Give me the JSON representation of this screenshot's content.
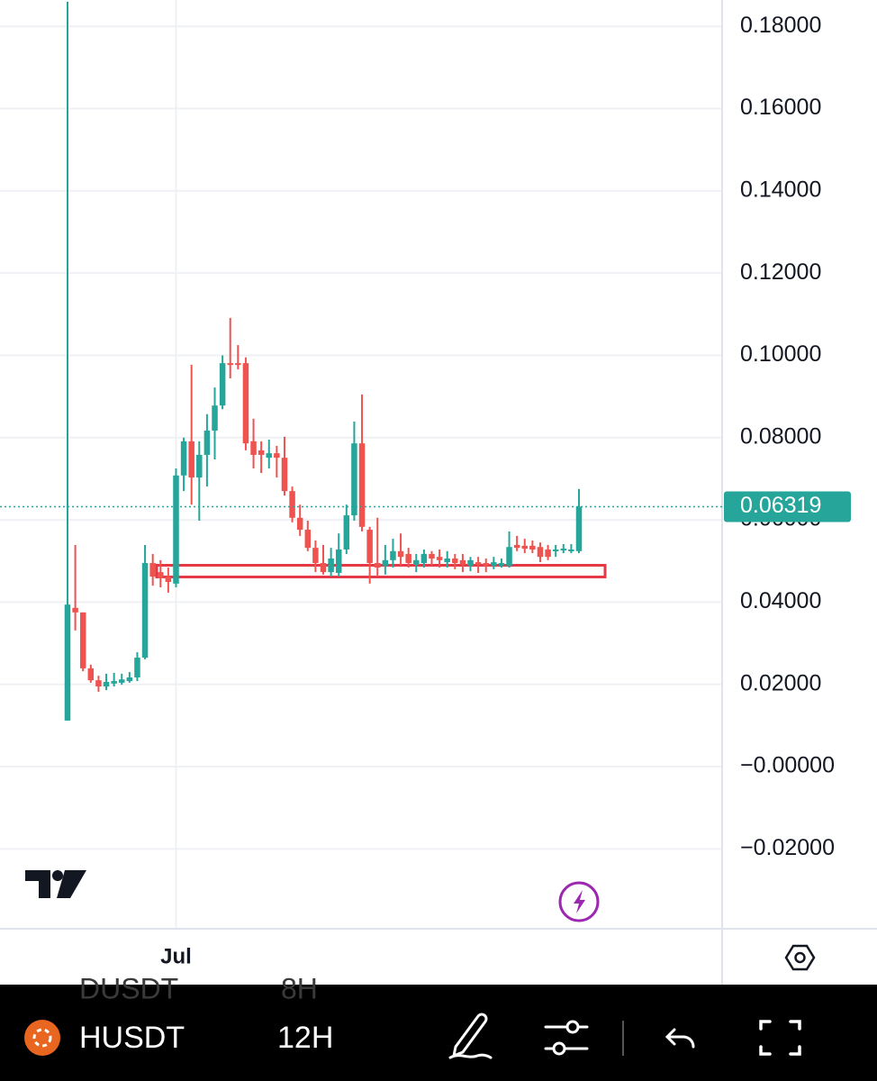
{
  "chart_data": {
    "type": "candlestick",
    "up_color": "#26a69a",
    "down_color": "#ef5350",
    "grid": true,
    "ylim": [
      -0.0392,
      0.1864
    ],
    "yticks": [
      {
        "value": 0.18,
        "label": "0.18000"
      },
      {
        "value": 0.16,
        "label": "0.16000"
      },
      {
        "value": 0.14,
        "label": "0.14000"
      },
      {
        "value": 0.12,
        "label": "0.12000"
      },
      {
        "value": 0.1,
        "label": "0.10000"
      },
      {
        "value": 0.08,
        "label": "0.08000"
      },
      {
        "value": 0.06,
        "label": "0.06000"
      },
      {
        "value": 0.04,
        "label": "0.04000"
      },
      {
        "value": 0.02,
        "label": "0.02000"
      },
      {
        "value": 0,
        "label": "−0.00000"
      },
      {
        "value": -0.02,
        "label": "−0.02000"
      }
    ],
    "categories": [
      null,
      null,
      null,
      null,
      null,
      null,
      null,
      null,
      null,
      null,
      null,
      null,
      null,
      null,
      "Jul",
      null,
      null,
      null,
      null,
      null,
      null,
      null,
      null,
      null,
      null,
      null,
      null,
      null,
      null,
      null,
      null,
      null,
      null,
      null,
      null,
      null,
      null,
      null,
      null,
      null,
      null,
      null,
      null,
      null,
      null,
      null,
      null,
      null,
      null,
      null,
      null,
      null,
      null,
      null,
      null,
      null,
      null,
      null,
      null,
      null,
      null,
      null,
      null,
      null,
      null,
      null,
      null
    ],
    "open": [
      0.0112,
      0.0386,
      0.0375,
      0.0239,
      0.021,
      0.0195,
      0.0202,
      0.0204,
      0.0208,
      0.0217,
      0.0265,
      0.0495,
      0.0473,
      0.0462,
      0.0445,
      0.0708,
      0.0791,
      0.0703,
      0.0758,
      0.0817,
      0.0878,
      0.0981,
      0.0981,
      0.0981,
      0.0791,
      0.0769,
      0.0751,
      0.0762,
      0.0751,
      0.067,
      0.0605,
      0.0576,
      0.0532,
      0.0495,
      0.0473,
      0.0471,
      0.0528,
      0.0611,
      0.0786,
      0.0576,
      0.0495,
      0.0488,
      0.0502,
      0.0524,
      0.0517,
      0.0491,
      0.0495,
      0.0517,
      0.051,
      0.0497,
      0.0506,
      0.0502,
      0.0488,
      0.0497,
      0.0495,
      0.0488,
      0.0488,
      0.0488,
      0.0539,
      0.0537,
      0.0537,
      0.0534,
      0.0528,
      0.0524,
      0.0528,
      0.0524,
      0.0524
    ],
    "high": [
      0.186,
      0.0539,
      0.0375,
      0.0248,
      0.0221,
      0.0226,
      0.0228,
      0.0226,
      0.023,
      0.0278,
      0.0539,
      0.0517,
      0.0502,
      0.0484,
      0.0725,
      0.08,
      0.0977,
      0.0791,
      0.0857,
      0.0922,
      0.1,
      0.1091,
      0.1025,
      0.0995,
      0.0846,
      0.0791,
      0.0795,
      0.078,
      0.0802,
      0.0681,
      0.0637,
      0.0598,
      0.055,
      0.0539,
      0.0532,
      0.0567,
      0.0637,
      0.0839,
      0.0905,
      0.0583,
      0.0605,
      0.0539,
      0.0554,
      0.0567,
      0.0532,
      0.0517,
      0.0528,
      0.0524,
      0.0528,
      0.0524,
      0.0517,
      0.0517,
      0.051,
      0.051,
      0.0506,
      0.051,
      0.0506,
      0.0572,
      0.0561,
      0.0554,
      0.055,
      0.0545,
      0.0539,
      0.0539,
      0.0541,
      0.0541,
      0.0675
    ],
    "low": [
      0.0112,
      0.0331,
      0.0232,
      0.0204,
      0.0182,
      0.0186,
      0.0195,
      0.0199,
      0.0204,
      0.0208,
      0.0261,
      0.044,
      0.0436,
      0.0423,
      0.0436,
      0.067,
      0.0637,
      0.0598,
      0.0681,
      0.0747,
      0.0869,
      0.0944,
      0.0966,
      0.0769,
      0.0725,
      0.0714,
      0.0725,
      0.0703,
      0.0659,
      0.0594,
      0.0561,
      0.0524,
      0.0473,
      0.0467,
      0.0462,
      0.0462,
      0.0517,
      0.0598,
      0.0572,
      0.0445,
      0.0462,
      0.0467,
      0.0484,
      0.0488,
      0.0484,
      0.0473,
      0.0484,
      0.0488,
      0.0484,
      0.0484,
      0.048,
      0.0473,
      0.0475,
      0.0471,
      0.0473,
      0.048,
      0.0484,
      0.0484,
      0.0524,
      0.0519,
      0.0519,
      0.0497,
      0.0502,
      0.051,
      0.0519,
      0.0519,
      0.0519
    ],
    "close": [
      0.0394,
      0.0375,
      0.0239,
      0.021,
      0.0195,
      0.0206,
      0.0208,
      0.0212,
      0.0217,
      0.0265,
      0.0495,
      0.0462,
      0.0458,
      0.0449,
      0.0708,
      0.0791,
      0.0703,
      0.0758,
      0.0817,
      0.0878,
      0.0981,
      0.0977,
      0.0977,
      0.0786,
      0.0758,
      0.0758,
      0.0762,
      0.0751,
      0.067,
      0.0605,
      0.0576,
      0.0532,
      0.0495,
      0.0473,
      0.0506,
      0.0528,
      0.0611,
      0.0786,
      0.0583,
      0.0495,
      0.0484,
      0.0502,
      0.0524,
      0.051,
      0.0495,
      0.0502,
      0.0517,
      0.0506,
      0.0502,
      0.0506,
      0.0495,
      0.0491,
      0.0502,
      0.0491,
      0.0488,
      0.0497,
      0.0495,
      0.0534,
      0.0532,
      0.053,
      0.0528,
      0.051,
      0.051,
      0.0528,
      0.053,
      0.0528,
      0.06319
    ]
  },
  "toolbar": {
    "symbol": "HUSDT",
    "interval": "12H",
    "ghost_symbol": "DUSDT",
    "ghost_interval": "8H"
  }
}
